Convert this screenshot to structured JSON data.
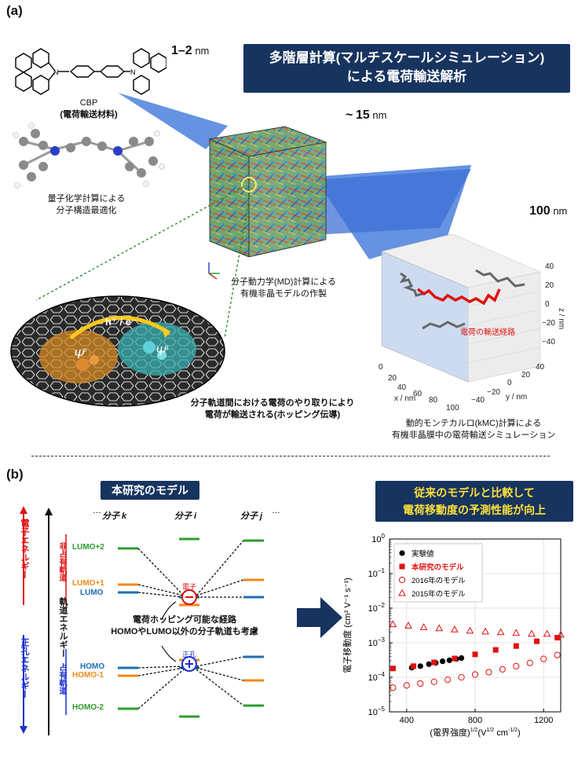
{
  "panel_a": {
    "label": "(a)",
    "banner_line1": "多階層計算(マルチスケールシミュレーション)",
    "banner_line2": "による電荷輸送解析",
    "scale_small_num": "1–2",
    "scale_small_unit": "nm",
    "scale_mid_prefix": "~",
    "scale_mid_num": "15",
    "scale_mid_unit": "nm",
    "scale_large_num": "100",
    "scale_large_unit": "nm",
    "molecule_name": "CBP",
    "molecule_role": "(電荷輸送材料)",
    "qc_caption_1": "量子化学計算による",
    "qc_caption_2": "分子構造最適化",
    "md_caption_1": "分子動力学(MD)計算による",
    "md_caption_2": "有機非晶モデルの作製",
    "hopping_label": "h⁺ / e⁻",
    "psi_p": "Ψ",
    "psi_q": "Ψ",
    "orbital_caption_1": "分子軌道間における電荷のやり取りにより",
    "orbital_caption_2": "電荷が輸送される(ホッピング伝導)",
    "path_label": "電荷の輸送経路",
    "kmc_caption_1": "動的モンテカルロ(kMC)計算による",
    "kmc_caption_2": "有機非晶膜中の電荷輸送シミュレーション",
    "x_axis_label": "x / nm",
    "y_axis_label": "y / nm",
    "z_axis_label": "z / nm",
    "x_ticks": [
      "0",
      "20",
      "40",
      "60",
      "80",
      "100"
    ],
    "y_ticks": [
      "−40",
      "−20",
      "0",
      "20",
      "40"
    ],
    "z_ticks": [
      "40",
      "20",
      "0",
      "−20",
      "−40"
    ]
  },
  "panel_b": {
    "label": "(b)",
    "model_title": "本研究のモデル",
    "compare_line1": "従来のモデルと比較して",
    "compare_line2": "電荷移動度の予測性能が向上",
    "mol_k": "分子 k",
    "mol_i": "分子 i",
    "mol_j": "分子 j",
    "electron_energy": "電子エネルギー",
    "hole_energy": "正孔エネルギー",
    "orbital_energy": "軌道エネルギー",
    "unoccupied": "非占有軌道",
    "occupied": "占有軌道",
    "lumo2": "LUMO+2",
    "lumo1": "LUMO+1",
    "lumo": "LUMO",
    "homo": "HOMO",
    "homo1": "HOMO-1",
    "homo2": "HOMO-2",
    "electron": "電子",
    "hole": "正孔",
    "paths_line1": "電荷ホッピング可能な経路",
    "paths_line2": "HOMOやLUMO以外の分子軌道も考慮",
    "ellipsis": "⋮",
    "dots": "…"
  },
  "chart_data": {
    "type": "scatter",
    "xlabel": "(電界強度)^{1/2}(V^{1/2} cm^{-1/2})",
    "ylabel": "電子移動度 (cm² V⁻¹ s⁻¹)",
    "x_scale": "linear",
    "y_scale": "log",
    "xlim": [
      300,
      1300
    ],
    "ylim": [
      1e-05,
      1
    ],
    "x_ticks": [
      "400",
      "800",
      "1200"
    ],
    "y_ticks": [
      "10^0",
      "10^-1",
      "10^-2",
      "10^-3",
      "10^-4",
      "10^-5"
    ],
    "grid": true,
    "legend_position": "top-left",
    "series": [
      {
        "name": "実験値",
        "marker": "filled-circle",
        "color": "#000000",
        "x": [
          430,
          480,
          530,
          570,
          610,
          650,
          690,
          720
        ],
        "y": [
          0.00019,
          0.00021,
          0.00024,
          0.00026,
          0.00029,
          0.00031,
          0.00034,
          0.00036
        ]
      },
      {
        "name": "本研究のモデル",
        "marker": "filled-square",
        "color": "#e01010",
        "x": [
          320,
          440,
          560,
          680,
          800,
          920,
          1040,
          1160,
          1280
        ],
        "y": [
          0.00018,
          0.00021,
          0.00027,
          0.00035,
          0.00046,
          0.00062,
          0.0008,
          0.0011,
          0.0014
        ]
      },
      {
        "name": "2016年のモデル",
        "marker": "open-circle",
        "color": "#e01010",
        "x": [
          320,
          400,
          480,
          560,
          640,
          720,
          800,
          880,
          960,
          1040,
          1120,
          1200,
          1280
        ],
        "y": [
          5e-05,
          5.8e-05,
          6.6e-05,
          7.4e-05,
          8.5e-05,
          0.0001,
          0.00012,
          0.00014,
          0.00017,
          0.00021,
          0.00026,
          0.00034,
          0.00044
        ]
      },
      {
        "name": "2015年のモデル",
        "marker": "open-triangle",
        "color": "#e01010",
        "x": [
          320,
          410,
          500,
          590,
          680,
          770,
          860,
          950,
          1040,
          1130,
          1220,
          1300
        ],
        "y": [
          0.0034,
          0.0031,
          0.0028,
          0.0026,
          0.0024,
          0.0022,
          0.0021,
          0.002,
          0.0019,
          0.0018,
          0.0018,
          0.0017
        ]
      }
    ]
  }
}
